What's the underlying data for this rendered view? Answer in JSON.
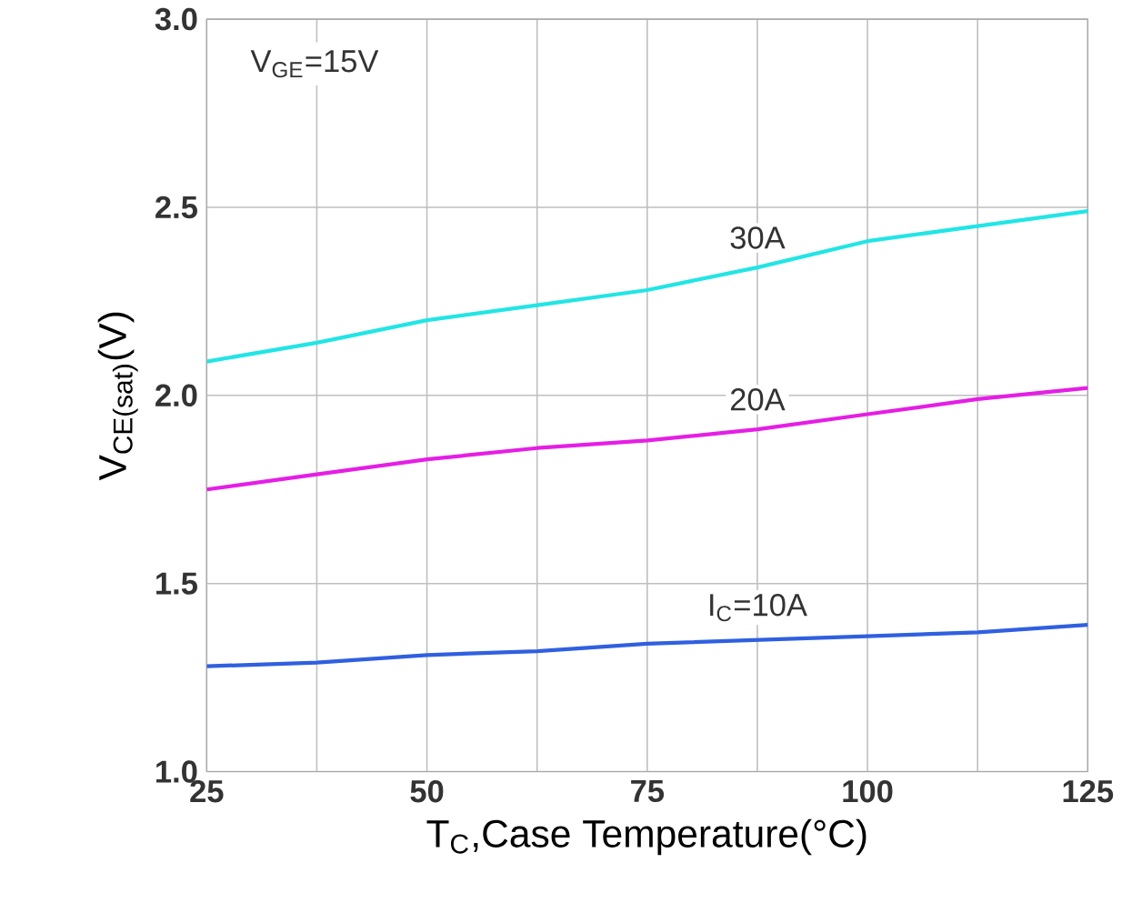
{
  "chart_data": {
    "type": "line",
    "xlabel": "T$_{C}$,Case Temperature(°C)",
    "ylabel": "V$_{CE(sat)}$(V)",
    "annotations": [
      "V$_{GE}$=15V"
    ],
    "x": [
      25,
      37.5,
      50,
      62.5,
      75,
      87.5,
      100,
      112.5,
      125
    ],
    "series": [
      {
        "name": "30A",
        "color": "#22e5e5",
        "values": [
          2.09,
          2.14,
          2.2,
          2.24,
          2.28,
          2.34,
          2.41,
          2.45,
          2.49
        ]
      },
      {
        "name": "20A",
        "color": "#e51ee5",
        "values": [
          1.75,
          1.79,
          1.83,
          1.86,
          1.88,
          1.91,
          1.95,
          1.99,
          2.02
        ]
      },
      {
        "name": "I$_{C}$=10A",
        "color": "#3060e0",
        "values": [
          1.28,
          1.29,
          1.31,
          1.32,
          1.34,
          1.35,
          1.36,
          1.37,
          1.39
        ]
      }
    ],
    "xlim": [
      25,
      125
    ],
    "ylim": [
      1.0,
      3.0
    ],
    "xticks": [
      25,
      {
        "value": 37.5,
        "label": null
      },
      50,
      {
        "value": 62.5,
        "label": null
      },
      75,
      {
        "value": 87.5,
        "label": null
      },
      100,
      {
        "value": 112.5,
        "label": null
      },
      125
    ],
    "yticks": [
      {
        "value": 1.0,
        "label": "1.0"
      },
      {
        "value": 1.5,
        "label": "1.5"
      },
      {
        "value": 2.0,
        "label": "2.0"
      },
      {
        "value": 2.5,
        "label": "2.5"
      },
      {
        "value": 3.0,
        "label": "3.0"
      }
    ],
    "grid": true,
    "marker": "none",
    "line_style": "solid",
    "legend": false
  }
}
